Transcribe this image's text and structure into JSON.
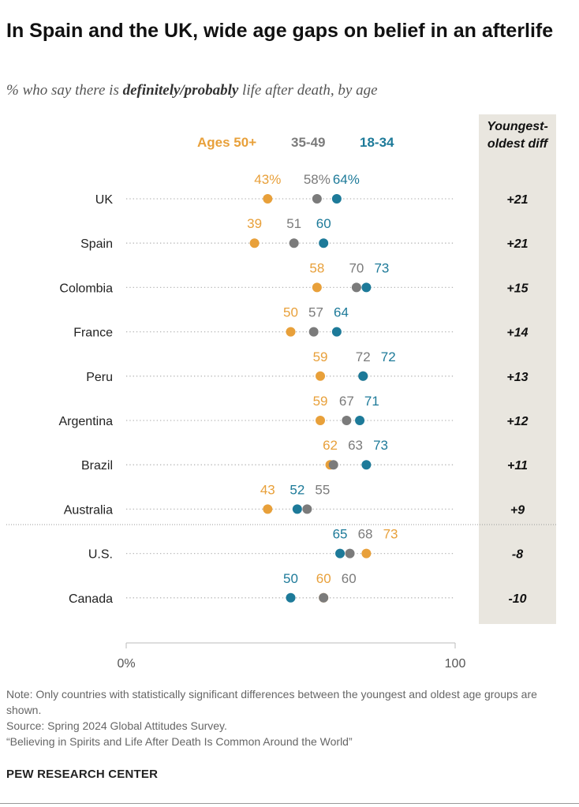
{
  "header": {
    "title": "In Spain and the UK, wide age gaps on belief in an afterlife",
    "subtitle_prefix": "% who say there is ",
    "subtitle_bold": "definitely/probably",
    "subtitle_suffix": " life after death, by age"
  },
  "diff_header": [
    "Youngest-",
    "oldest diff"
  ],
  "colors": {
    "older": "#e8a03a",
    "middle": "#7b7b7b",
    "young": "#1d7a99",
    "dots_line": "#b5b5b5"
  },
  "chart_data": {
    "type": "dot",
    "title": "In Spain and the UK, wide age gaps on belief in an afterlife",
    "xlim": [
      0,
      100
    ],
    "x_ticks": [
      "0%",
      "100"
    ],
    "series": [
      {
        "key": "older",
        "name": "Ages 50+"
      },
      {
        "key": "middle",
        "name": "35-49"
      },
      {
        "key": "young",
        "name": "18-34"
      }
    ],
    "rows": [
      {
        "country": "UK",
        "older": 43,
        "middle": 58,
        "young": 64,
        "labels": [
          "43%",
          "58%",
          "64%"
        ],
        "diff": "+21"
      },
      {
        "country": "Spain",
        "older": 39,
        "middle": 51,
        "young": 60,
        "labels": [
          "39",
          "51",
          "60"
        ],
        "diff": "+21"
      },
      {
        "country": "Colombia",
        "older": 58,
        "middle": 70,
        "young": 73,
        "labels": [
          "58",
          "70",
          "73"
        ],
        "diff": "+15"
      },
      {
        "country": "France",
        "older": 50,
        "middle": 57,
        "young": 64,
        "labels": [
          "50",
          "57",
          "64"
        ],
        "diff": "+14"
      },
      {
        "country": "Peru",
        "older": 59,
        "middle": 72,
        "young": 72,
        "labels": [
          "59",
          "72",
          "72"
        ],
        "diff": "+13"
      },
      {
        "country": "Argentina",
        "older": 59,
        "middle": 67,
        "young": 71,
        "labels": [
          "59",
          "67",
          "71"
        ],
        "diff": "+12"
      },
      {
        "country": "Brazil",
        "older": 62,
        "middle": 63,
        "young": 73,
        "labels": [
          "62",
          "63",
          "73"
        ],
        "diff": "+11"
      },
      {
        "country": "Australia",
        "older": 43,
        "middle": 55,
        "young": 52,
        "labels": [
          "43",
          "55",
          "52"
        ],
        "diff": "+9"
      },
      {
        "country": "U.S.",
        "older": 73,
        "middle": 68,
        "young": 65,
        "labels": [
          "73",
          "68",
          "65"
        ],
        "diff": "-8"
      },
      {
        "country": "Canada",
        "older": 60,
        "middle": 60,
        "young": 50,
        "labels": [
          "60",
          "60",
          "50"
        ],
        "diff": "-10"
      }
    ]
  },
  "footer": {
    "note": "Note: Only countries with statistically significant differences between the youngest and oldest age groups are shown.",
    "source": "Source: Spring 2024 Global Attitudes Survey.",
    "report": "“Believing in Spirits and Life After Death Is Common Around the World”",
    "brand": "PEW RESEARCH CENTER"
  }
}
